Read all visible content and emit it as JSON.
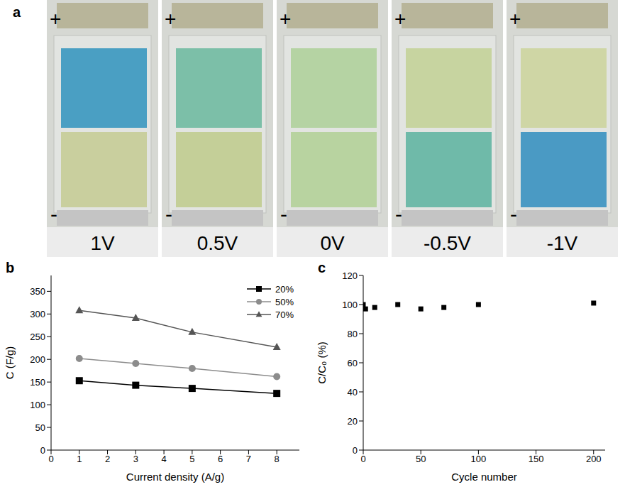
{
  "photo": {
    "letter": "a",
    "positive": "+",
    "negative": "-",
    "frames": [
      {
        "label": "1V",
        "top_color": "#4a9fc3",
        "bottom_color": "#c9cf9e"
      },
      {
        "label": "0.5V",
        "top_color": "#7cbfa8",
        "bottom_color": "#c4cf98"
      },
      {
        "label": "0V",
        "top_color": "#b5d3a3",
        "bottom_color": "#b8d3a0"
      },
      {
        "label": "-0.5V",
        "top_color": "#c7d4a0",
        "bottom_color": "#6fbaa9"
      },
      {
        "label": "-1V",
        "top_color": "#cfd6a5",
        "bottom_color": "#4a9ac4"
      }
    ]
  },
  "chart_data": [
    {
      "letter": "b",
      "type": "line",
      "x_label": "Current density (A/g)",
      "y_label": "C (F/g)",
      "x": [
        1,
        3,
        5,
        8
      ],
      "series": [
        {
          "name": "20%",
          "color": "#000000",
          "marker": "square",
          "values": [
            153,
            143,
            136,
            125
          ]
        },
        {
          "name": "50%",
          "color": "#8c8c8c",
          "marker": "circle",
          "values": [
            202,
            191,
            180,
            162
          ]
        },
        {
          "name": "70%",
          "color": "#555555",
          "marker": "triangle",
          "values": [
            308,
            291,
            260,
            227
          ]
        }
      ],
      "xlim": [
        0,
        8.8
      ],
      "xticks": [
        0,
        1,
        2,
        3,
        4,
        5,
        6,
        7,
        8
      ],
      "ylim": [
        0,
        385
      ],
      "yticks": [
        0,
        50,
        100,
        150,
        200,
        250,
        300,
        350
      ],
      "legend": "upper right"
    },
    {
      "letter": "c",
      "type": "scatter",
      "x_label": "Cycle number",
      "y_label": "C/C₀ (%)",
      "x": [
        0,
        2,
        10,
        30,
        50,
        70,
        100,
        200
      ],
      "values": [
        100,
        97,
        98,
        100,
        97,
        98,
        100,
        101
      ],
      "color": "#000000",
      "marker": "square",
      "xlim": [
        0,
        210
      ],
      "xticks": [
        0,
        50,
        100,
        150,
        200
      ],
      "ylim": [
        0,
        120
      ],
      "yticks": [
        0,
        20,
        40,
        60,
        80,
        100,
        120
      ]
    }
  ]
}
